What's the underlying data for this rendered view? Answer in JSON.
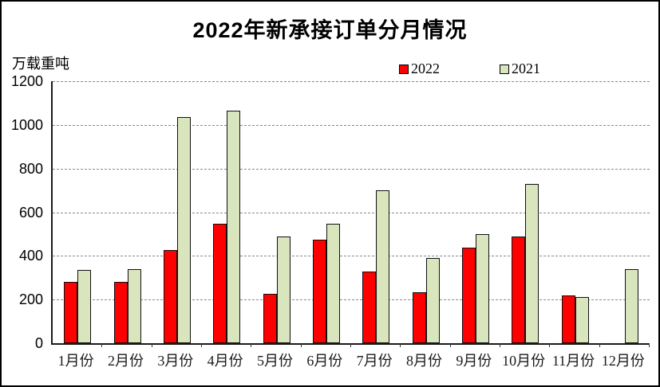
{
  "window": {
    "background_color": "#ffffff",
    "border_color": "#000000"
  },
  "chart_data": {
    "type": "bar",
    "title": "2022年新承接订单分月情况",
    "unit_label": "万载重吨",
    "categories": [
      "1月份",
      "2月份",
      "3月份",
      "4月份",
      "5月份",
      "6月份",
      "7月份",
      "8月份",
      "9月份",
      "10月份",
      "11月份",
      "12月份"
    ],
    "series": [
      {
        "name": "2022",
        "color": "#ff0000",
        "values": [
          280,
          280,
          427,
          546,
          228,
          474,
          327,
          233,
          438,
          490,
          218,
          null
        ]
      },
      {
        "name": "2021",
        "color": "#d9e5bc",
        "values": [
          336,
          341,
          1037,
          1065,
          489,
          548,
          700,
          389,
          500,
          730,
          213,
          340
        ]
      }
    ],
    "ylim": [
      0,
      1200
    ],
    "yticks": [
      0,
      200,
      400,
      600,
      800,
      1000,
      1200
    ],
    "grid": "horizontal-dashed",
    "gridline_color": "#8a8a8a",
    "legend_position": "top-center",
    "xlabel": "",
    "ylabel": "万载重吨"
  }
}
